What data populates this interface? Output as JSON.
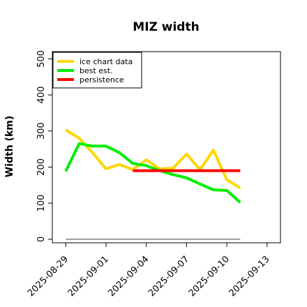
{
  "chart_data": {
    "type": "line",
    "title": "MIZ width",
    "xlabel": "",
    "ylabel": "Width (km)",
    "ylim": [
      -10,
      520
    ],
    "xlim": [
      "2025-08-28",
      "2025-09-14"
    ],
    "yticks": [
      0,
      100,
      200,
      300,
      400,
      500
    ],
    "xticks": [
      "2025-08-29",
      "2025-09-01",
      "2025-09-04",
      "2025-09-07",
      "2025-09-10",
      "2025-09-13"
    ],
    "grid": false,
    "legend": "top-left",
    "x": [
      "2025-08-29",
      "2025-08-30",
      "2025-08-31",
      "2025-09-01",
      "2025-09-02",
      "2025-09-03",
      "2025-09-04",
      "2025-09-05",
      "2025-09-06",
      "2025-09-07",
      "2025-09-08",
      "2025-09-09",
      "2025-09-10",
      "2025-09-11"
    ],
    "series": [
      {
        "name": "ice chart data",
        "color": "#ffd700",
        "values": [
          303,
          280,
          240,
          195,
          207,
          193,
          220,
          195,
          197,
          236,
          193,
          247,
          165,
          142
        ]
      },
      {
        "name": "best est.",
        "color": "#00ee00",
        "values": [
          188,
          265,
          258,
          258,
          240,
          210,
          204,
          190,
          179,
          170,
          153,
          137,
          135,
          102
        ]
      },
      {
        "name": "persistence",
        "color": "#ff0000",
        "start": "2025-09-03",
        "end": "2025-09-11",
        "value": 190
      }
    ],
    "baseline": {
      "start": "2025-08-29",
      "end": "2025-09-11",
      "value": 0,
      "color": "#808080"
    }
  }
}
